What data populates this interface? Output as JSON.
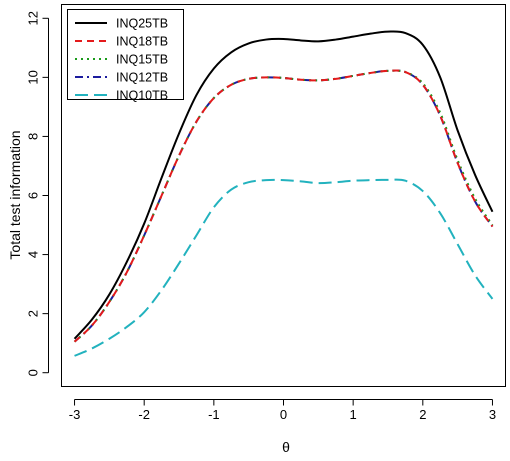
{
  "chart_data": {
    "type": "line",
    "title": "",
    "xlabel": "θ",
    "ylabel": "Total test information",
    "xlim": [
      -3.18,
      3.18
    ],
    "ylim": [
      -0.45,
      12.45
    ],
    "xticks": [
      -3,
      -2,
      -1,
      0,
      1,
      2,
      3
    ],
    "yticks": [
      0,
      2,
      4,
      6,
      8,
      10,
      12
    ],
    "xtick_labels": [
      "-3",
      "-2",
      "-1",
      "0",
      "1",
      "2",
      "3"
    ],
    "ytick_labels": [
      "0",
      "2",
      "4",
      "6",
      "8",
      "10",
      "12"
    ],
    "legend": {
      "position": "top-left",
      "frame": true
    },
    "grid": false,
    "x": [
      -3,
      -2.75,
      -2.5,
      -2.25,
      -2,
      -1.75,
      -1.5,
      -1.25,
      -1,
      -0.75,
      -0.5,
      -0.25,
      0,
      0.25,
      0.5,
      0.75,
      1,
      1.25,
      1.5,
      1.75,
      2,
      2.25,
      2.5,
      2.75,
      3
    ],
    "series": [
      {
        "name": "INQ25TB",
        "color": "#000000",
        "dash": "solid",
        "values": [
          1.15,
          1.8,
          2.65,
          3.75,
          5.05,
          6.6,
          8.1,
          9.4,
          10.3,
          10.85,
          11.15,
          11.28,
          11.3,
          11.25,
          11.22,
          11.28,
          11.38,
          11.48,
          11.55,
          11.5,
          11.1,
          10.0,
          8.2,
          6.7,
          5.45
        ]
      },
      {
        "name": "INQ18TB",
        "color": "#e41a1c",
        "dash": "dashed",
        "values": [
          1.05,
          1.6,
          2.4,
          3.4,
          4.65,
          6.0,
          7.35,
          8.5,
          9.3,
          9.75,
          9.95,
          10.0,
          9.98,
          9.92,
          9.9,
          9.95,
          10.05,
          10.15,
          10.22,
          10.18,
          9.75,
          8.7,
          7.1,
          5.8,
          4.95
        ]
      },
      {
        "name": "INQ15TB",
        "color": "#1a9b1a",
        "dash": "dotted",
        "values": [
          1.05,
          1.6,
          2.4,
          3.4,
          4.65,
          6.0,
          7.35,
          8.5,
          9.3,
          9.75,
          9.95,
          10.0,
          9.98,
          9.92,
          9.9,
          9.95,
          10.05,
          10.15,
          10.22,
          10.18,
          9.8,
          8.8,
          7.2,
          5.9,
          5.0
        ]
      },
      {
        "name": "INQ12TB",
        "color": "#1c1c9e",
        "dash": "dashdot",
        "values": [
          1.05,
          1.6,
          2.4,
          3.4,
          4.65,
          6.0,
          7.35,
          8.5,
          9.3,
          9.75,
          9.95,
          10.0,
          9.98,
          9.92,
          9.9,
          9.95,
          10.05,
          10.15,
          10.22,
          10.18,
          9.75,
          8.7,
          7.1,
          5.8,
          4.95
        ]
      },
      {
        "name": "INQ10TB",
        "color": "#22b2be",
        "dash": "longdash",
        "values": [
          0.57,
          0.82,
          1.15,
          1.55,
          2.05,
          2.8,
          3.7,
          4.65,
          5.6,
          6.2,
          6.45,
          6.52,
          6.52,
          6.48,
          6.42,
          6.45,
          6.5,
          6.52,
          6.53,
          6.5,
          6.15,
          5.4,
          4.35,
          3.3,
          2.5
        ]
      }
    ]
  }
}
